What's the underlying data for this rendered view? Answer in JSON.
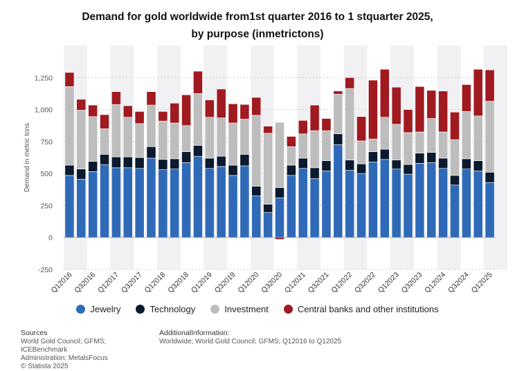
{
  "title_line1": "Demand for gold worldwide from1st quarter 2016 to 1 stquarter 2025,",
  "title_line2": "by purpose (inmetrictons)",
  "footer": {
    "sources_head": "Sources",
    "sources_lines": [
      "World Gold Council; GFMS; ICEBenchmark",
      "Administration; MetalsFocus",
      "© Statista 2025"
    ],
    "info_head": "AdditionalInformation:",
    "info_line": "Worldwide; World Gold Council; GFMS; Q12016 to Q12025"
  },
  "colors": {
    "Jewelry": "#2f6ab8",
    "Technology": "#0b1a2e",
    "Investment": "#bdbdbd",
    "Central banks and other institutions": "#a01a20"
  },
  "chart_data": {
    "type": "bar",
    "stacked": true,
    "title": "Demand for gold worldwide from1st quarter 2016 to 1 stquarter 2025, by purpose (inmetrictons)",
    "ylabel": "Demand in metric tons",
    "xlabel": "",
    "ylim": [
      -250,
      1500
    ],
    "yticks": [
      -250,
      0,
      250,
      500,
      750,
      "1,000",
      "1,250"
    ],
    "grid": true,
    "legend_position": "bottom",
    "categories": [
      "Q12016",
      "Q22016",
      "Q32016",
      "Q42016",
      "Q12017",
      "Q22017",
      "Q32017",
      "Q42017",
      "Q12018",
      "Q22018",
      "Q32018",
      "Q42018",
      "Q12019",
      "Q22019",
      "Q32019",
      "Q42019",
      "Q12020",
      "Q22020",
      "Q32020",
      "Q42020",
      "Q12021",
      "Q22021",
      "Q32021",
      "Q42021",
      "Q12022",
      "Q22022",
      "Q32022",
      "Q42022",
      "Q12023",
      "Q22023",
      "Q32023",
      "Q42023",
      "Q12024",
      "Q22024",
      "Q32024",
      "Q42024",
      "Q12025"
    ],
    "tick_labels": [
      "Q12016",
      "Q32016",
      "Q12017",
      "Q32017",
      "Q12018",
      "Q32018",
      "Q12019",
      "Q32019",
      "Q12020",
      "Q32020",
      "Q12021",
      "Q32021",
      "Q12022",
      "Q32022",
      "Q12023",
      "Q32023",
      "Q12024",
      "Q32024",
      "Q12025"
    ],
    "series": [
      {
        "name": "Jewelry",
        "values": [
          485,
          455,
          515,
          570,
          545,
          545,
          540,
          620,
          530,
          535,
          585,
          635,
          540,
          555,
          485,
          560,
          325,
          195,
          310,
          485,
          540,
          460,
          520,
          725,
          525,
          500,
          590,
          610,
          535,
          495,
          580,
          585,
          540,
          410,
          535,
          520,
          430
        ]
      },
      {
        "name": "Technology",
        "values": [
          80,
          80,
          80,
          80,
          85,
          85,
          85,
          90,
          80,
          80,
          85,
          85,
          80,
          80,
          80,
          90,
          75,
          65,
          80,
          80,
          80,
          85,
          80,
          85,
          80,
          75,
          80,
          80,
          70,
          75,
          80,
          80,
          80,
          75,
          80,
          80,
          80
        ]
      },
      {
        "name": "Investment",
        "values": [
          615,
          460,
          350,
          200,
          410,
          310,
          265,
          325,
          300,
          280,
          205,
          405,
          320,
          300,
          330,
          275,
          555,
          555,
          510,
          145,
          190,
          290,
          235,
          310,
          560,
          180,
          100,
          250,
          280,
          250,
          165,
          265,
          205,
          280,
          370,
          350,
          555
        ]
      },
      {
        "name": "Central banks and other institutions",
        "values": [
          110,
          85,
          90,
          110,
          100,
          90,
          95,
          105,
          75,
          155,
          240,
          175,
          135,
          225,
          150,
          115,
          140,
          55,
          -15,
          80,
          105,
          200,
          95,
          25,
          85,
          190,
          460,
          375,
          290,
          180,
          355,
          220,
          320,
          215,
          210,
          365,
          245
        ]
      }
    ]
  }
}
